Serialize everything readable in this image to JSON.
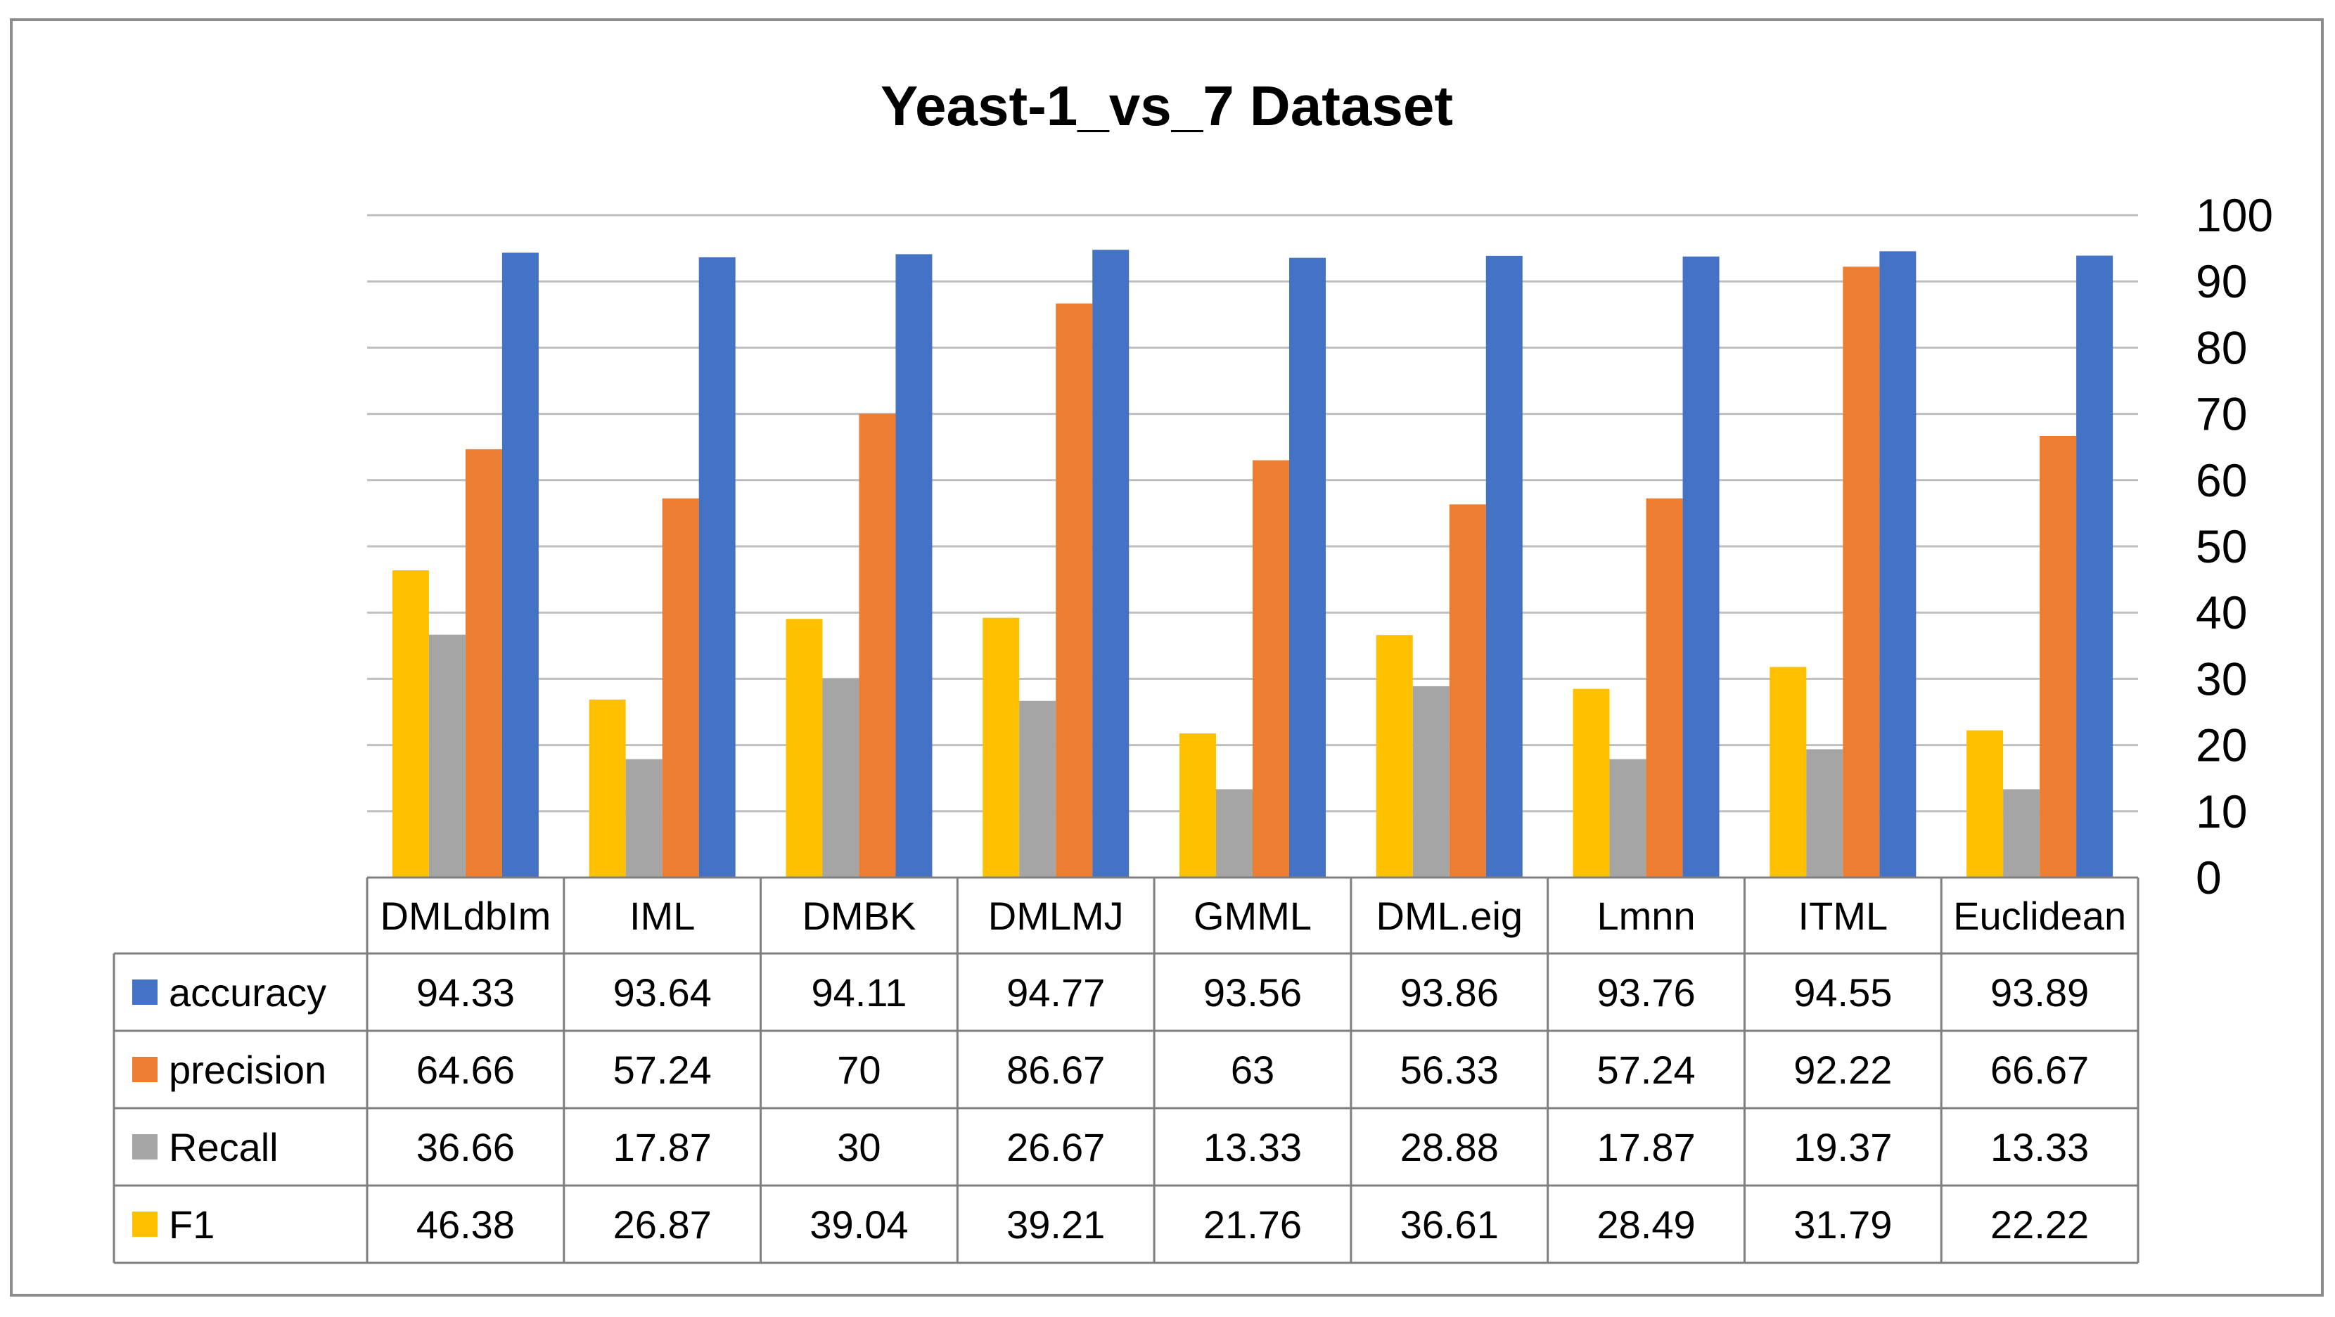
{
  "chart_data": {
    "type": "bar",
    "title": "Yeast-1_vs_7 Dataset",
    "categories": [
      "DMLdbIm",
      "IML",
      "DMBK",
      "DMLMJ",
      "GMML",
      "DML.eig",
      "Lmnn",
      "ITML",
      "Euclidean"
    ],
    "series": [
      {
        "name": "accuracy",
        "color": "#4472C4",
        "values": [
          94.33,
          93.64,
          94.11,
          94.77,
          93.56,
          93.86,
          93.76,
          94.55,
          93.89
        ]
      },
      {
        "name": "precision",
        "color": "#ED7D31",
        "values": [
          64.66,
          57.24,
          70,
          86.67,
          63,
          56.33,
          57.24,
          92.22,
          66.67
        ]
      },
      {
        "name": "Recall",
        "color": "#A5A5A5",
        "values": [
          36.66,
          17.87,
          30,
          26.67,
          13.33,
          28.88,
          17.87,
          19.37,
          13.33
        ]
      },
      {
        "name": "F1",
        "color": "#FFC000",
        "values": [
          46.38,
          26.87,
          39.04,
          39.21,
          21.76,
          36.61,
          28.49,
          31.79,
          22.22
        ]
      }
    ],
    "ylim": [
      0,
      100
    ],
    "yticks": [
      0,
      10,
      20,
      30,
      40,
      50,
      60,
      70,
      80,
      90,
      100
    ],
    "y_axis_position": "right",
    "grid": true,
    "legend": "data-table",
    "xlabel": "",
    "ylabel": ""
  }
}
